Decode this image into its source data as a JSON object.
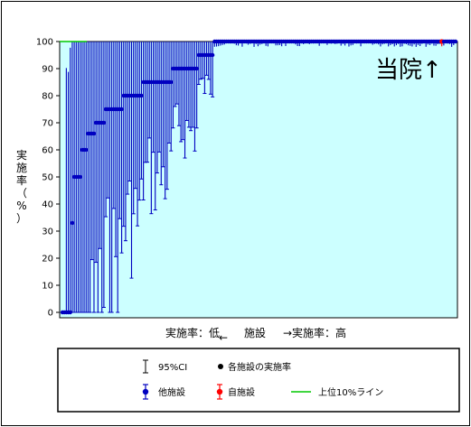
{
  "chart_data": {
    "type": "scatter",
    "ylabel": "実施率（%）",
    "ylim": [
      0,
      100
    ],
    "y_ticks": [
      0,
      10,
      20,
      30,
      40,
      50,
      60,
      70,
      80,
      90,
      100
    ],
    "x_axis": {
      "low_label": "実施率：低",
      "middle_label": "施設",
      "high_label": "→実施率：高",
      "left_arrow": "←"
    },
    "annotation": "当院↑",
    "reference_line": {
      "value": 100,
      "label": "上位10%ライン",
      "color": "#00c800"
    },
    "colors": {
      "other": "#0000c0",
      "own": "#ff0000",
      "background": "#ccffff"
    },
    "facilities": {
      "count": 200,
      "own_index": 192,
      "segments": [
        {
          "from": 0,
          "to": 4,
          "rate": 0
        },
        {
          "from": 5,
          "to": 5,
          "rate": 33
        },
        {
          "from": 6,
          "to": 9,
          "rate": 50
        },
        {
          "from": 10,
          "to": 12,
          "rate": 60
        },
        {
          "from": 13,
          "to": 16,
          "rate": 66
        },
        {
          "from": 17,
          "to": 21,
          "rate": 70
        },
        {
          "from": 22,
          "to": 30,
          "rate": 75
        },
        {
          "from": 31,
          "to": 40,
          "rate": 80
        },
        {
          "from": 41,
          "to": 55,
          "rate": 85
        },
        {
          "from": 56,
          "to": 68,
          "rate": 90
        },
        {
          "from": 69,
          "to": 76,
          "rate": 95
        },
        {
          "from": 77,
          "to": 199,
          "rate": 100
        }
      ]
    },
    "legend": {
      "ci_label": "95%CI",
      "rate_label": "各施設の実施率",
      "other_label": "他施設",
      "own_label": "自施設",
      "line_label": "上位10%ライン"
    }
  }
}
